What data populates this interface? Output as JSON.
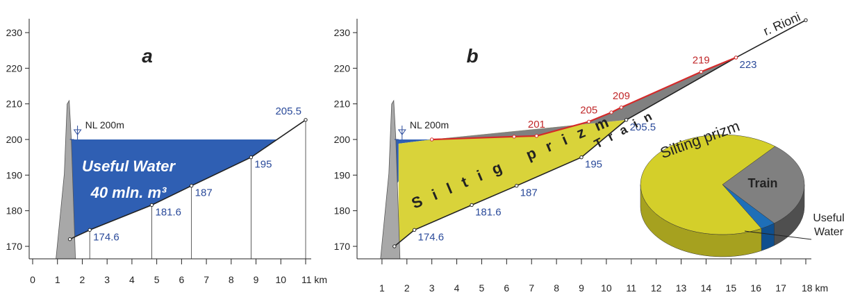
{
  "chart_data": [
    {
      "type": "profile",
      "title": "a",
      "xlim": [
        0,
        11
      ],
      "xticks": [
        0,
        1,
        2,
        3,
        4,
        5,
        6,
        7,
        8,
        9,
        10,
        {
          "value": 11,
          "label": "11 km"
        }
      ],
      "ylim": [
        170,
        230
      ],
      "yticks": [
        170,
        180,
        190,
        200,
        210,
        220,
        230
      ],
      "level": 200,
      "level_label": "NL 200m",
      "water_color": "#2f5fb3",
      "series": [
        {
          "color": "#222222",
          "label_color": "#2a4a9a",
          "x": [
            1.5,
            2.3,
            4.8,
            6.4,
            8.8,
            11
          ],
          "values": [
            172,
            174.6,
            181.6,
            187,
            195,
            205.5
          ],
          "value_labels": [
            null,
            "174.6",
            "181.6",
            "187",
            "195",
            "205.5"
          ]
        }
      ],
      "annotations": [
        "Useful Water",
        "40 mln. m³"
      ]
    },
    {
      "type": "profile",
      "title": "b",
      "xlim": [
        0,
        18
      ],
      "xticks": [
        1,
        2,
        3,
        4,
        5,
        6,
        7,
        8,
        9,
        10,
        11,
        12,
        13,
        14,
        15,
        16,
        17,
        {
          "value": 18,
          "label": "18 km"
        }
      ],
      "ylim": [
        170,
        230
      ],
      "yticks": [
        170,
        180,
        190,
        200,
        210,
        220,
        230
      ],
      "level": 200,
      "level_label": "NL 200m",
      "water_color": "#2f5fb3",
      "silt_color": "#d9d33a",
      "train_color": "#808080",
      "series": [
        {
          "color": "#222222",
          "label_color": "#2a4a9a",
          "x": [
            1.5,
            2.3,
            4.6,
            6.4,
            9,
            10.8,
            15.2,
            18
          ],
          "values": [
            170,
            174.6,
            181.6,
            187,
            195,
            205.5,
            223,
            233.5
          ],
          "value_labels": [
            null,
            "174.6",
            "181.6",
            "187",
            "195",
            "205.5",
            "223",
            null
          ]
        },
        {
          "color": "#d42a2a",
          "label_color": "#c0282a",
          "x": [
            3,
            6.3,
            7.2,
            9.3,
            10.2,
            10.6,
            13.8,
            15.2
          ],
          "values": [
            200,
            200.8,
            201,
            205,
            207.6,
            209,
            219,
            223
          ],
          "value_labels": [
            null,
            null,
            "201",
            "205",
            null,
            "209",
            "219",
            null
          ]
        }
      ],
      "annotations": [
        "Siltig prizm",
        "Train",
        "r. Rioni"
      ]
    },
    {
      "type": "pie",
      "categories": [
        "Train",
        "Useful Water",
        "Silting prizm"
      ],
      "values": [
        28,
        3,
        69
      ],
      "colors": [
        "#808080",
        "#1e6fb8",
        "#d4cf2a"
      ],
      "side_colors": [
        "#4f4f4f",
        "#0f4f8f",
        "#a6a11f"
      ]
    }
  ]
}
